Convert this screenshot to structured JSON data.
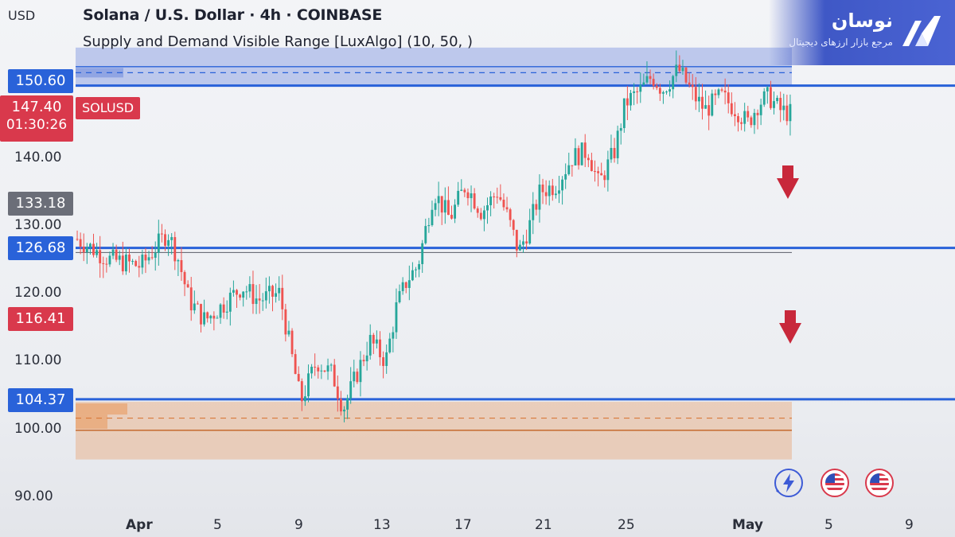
{
  "header": {
    "title": "Solana / U.S. Dollar · 4h · COINBASE",
    "indicator": "Supply and Demand Visible Range [LuxAlgo] (10, 50, )",
    "currency": "USD"
  },
  "price_axis": {
    "ticks": [
      "140.00",
      "130.00",
      "120.00",
      "110.00",
      "100.00",
      "90.00"
    ],
    "labels": [
      {
        "value": "150.60",
        "color": "#2962d9"
      },
      {
        "value": "133.18",
        "color": "#6b6e78"
      },
      {
        "value": "126.68",
        "color": "#2962d9"
      },
      {
        "value": "116.41",
        "color": "#d9394c"
      },
      {
        "value": "104.37",
        "color": "#2962d9"
      }
    ],
    "current_price": "147.40",
    "countdown": "01:30:26"
  },
  "symbol_tag": "SOLUSD",
  "time_axis": {
    "labels": [
      "Apr",
      "5",
      "9",
      "13",
      "17",
      "21",
      "25",
      "May",
      "5",
      "9"
    ]
  },
  "logo": {
    "name": "نوسان",
    "tagline": "مرجع بازار ارزهای دیجیتال"
  },
  "colors": {
    "up": "#26a69a",
    "down": "#ef5350",
    "level_line": "#2962d9",
    "supply_zone": "#7d95e0",
    "demand_zone": "#e9a97a"
  },
  "levels": [
    150.6,
    126.68,
    104.37
  ],
  "supply_zone": {
    "low": 150.6,
    "high": 156.2,
    "mid": 152.5
  },
  "demand_zone": {
    "low": 95.5,
    "high": 104.0,
    "mid": 99.8,
    "avg": 101.6
  },
  "bottom_icons": [
    "lightning-icon",
    "us-flag-icon",
    "us-flag-icon"
  ],
  "chart_data": {
    "type": "candlestick",
    "x_labels": [
      "Apr",
      "5",
      "9",
      "13",
      "17",
      "21",
      "25",
      "May",
      "5",
      "9"
    ],
    "ylim": [
      88,
      160
    ],
    "path": [
      [
        0,
        128
      ],
      [
        6,
        125
      ],
      [
        12,
        124
      ],
      [
        17,
        129
      ],
      [
        19,
        125
      ],
      [
        21,
        119
      ],
      [
        24,
        116
      ],
      [
        27,
        118
      ],
      [
        31,
        121
      ],
      [
        34,
        119
      ],
      [
        38,
        120
      ],
      [
        40,
        112
      ],
      [
        42,
        104
      ],
      [
        45,
        110
      ],
      [
        48,
        108
      ],
      [
        50,
        103
      ],
      [
        53,
        109
      ],
      [
        55,
        113
      ],
      [
        58,
        110
      ],
      [
        60,
        118
      ],
      [
        62,
        122
      ],
      [
        64,
        124
      ],
      [
        67,
        135
      ],
      [
        70,
        131
      ],
      [
        73,
        136
      ],
      [
        76,
        132
      ],
      [
        79,
        135
      ],
      [
        81,
        131
      ],
      [
        83,
        126
      ],
      [
        85,
        130
      ],
      [
        87,
        135
      ],
      [
        90,
        136
      ],
      [
        93,
        140
      ],
      [
        96,
        141
      ],
      [
        98,
        136
      ],
      [
        101,
        141
      ],
      [
        103,
        148
      ],
      [
        106,
        150
      ],
      [
        108,
        152
      ],
      [
        110,
        150
      ],
      [
        113,
        153
      ],
      [
        116,
        149
      ],
      [
        118,
        147
      ],
      [
        121,
        149
      ],
      [
        124,
        147
      ],
      [
        126,
        145
      ],
      [
        128,
        148
      ],
      [
        130,
        149
      ],
      [
        132,
        147
      ],
      [
        134,
        146.5
      ]
    ]
  }
}
